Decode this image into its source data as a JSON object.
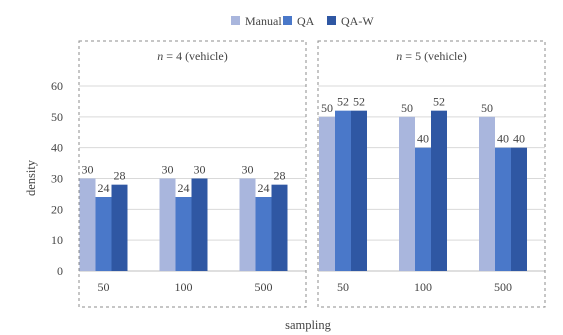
{
  "chart_data": {
    "type": "bar",
    "xlabel": "sampling",
    "ylabel": "density",
    "ylim": [
      0,
      60
    ],
    "yticks": [
      0,
      10,
      20,
      30,
      40,
      50,
      60
    ],
    "grid": true,
    "legend_position": "top-center",
    "series_meta": [
      {
        "name": "Manual",
        "color": "#a9b6dd"
      },
      {
        "name": "QA",
        "color": "#4a78c9"
      },
      {
        "name": "QA-W",
        "color": "#2f57a3"
      }
    ],
    "panels": [
      {
        "title_var": "n",
        "title_rest": " = 4 (vehicle)",
        "categories": [
          "50",
          "100",
          "500"
        ],
        "series": [
          {
            "name": "Manual",
            "values": [
              30,
              30,
              30
            ]
          },
          {
            "name": "QA",
            "values": [
              24,
              24,
              24
            ]
          },
          {
            "name": "QA-W",
            "values": [
              28,
              30,
              28
            ]
          }
        ]
      },
      {
        "title_var": "n",
        "title_rest": " = 5 (vehicle)",
        "categories": [
          "50",
          "100",
          "500"
        ],
        "series": [
          {
            "name": "Manual",
            "values": [
              50,
              50,
              50
            ]
          },
          {
            "name": "QA",
            "values": [
              52,
              40,
              40
            ]
          },
          {
            "name": "QA-W",
            "values": [
              52,
              52,
              40
            ]
          }
        ]
      }
    ]
  }
}
